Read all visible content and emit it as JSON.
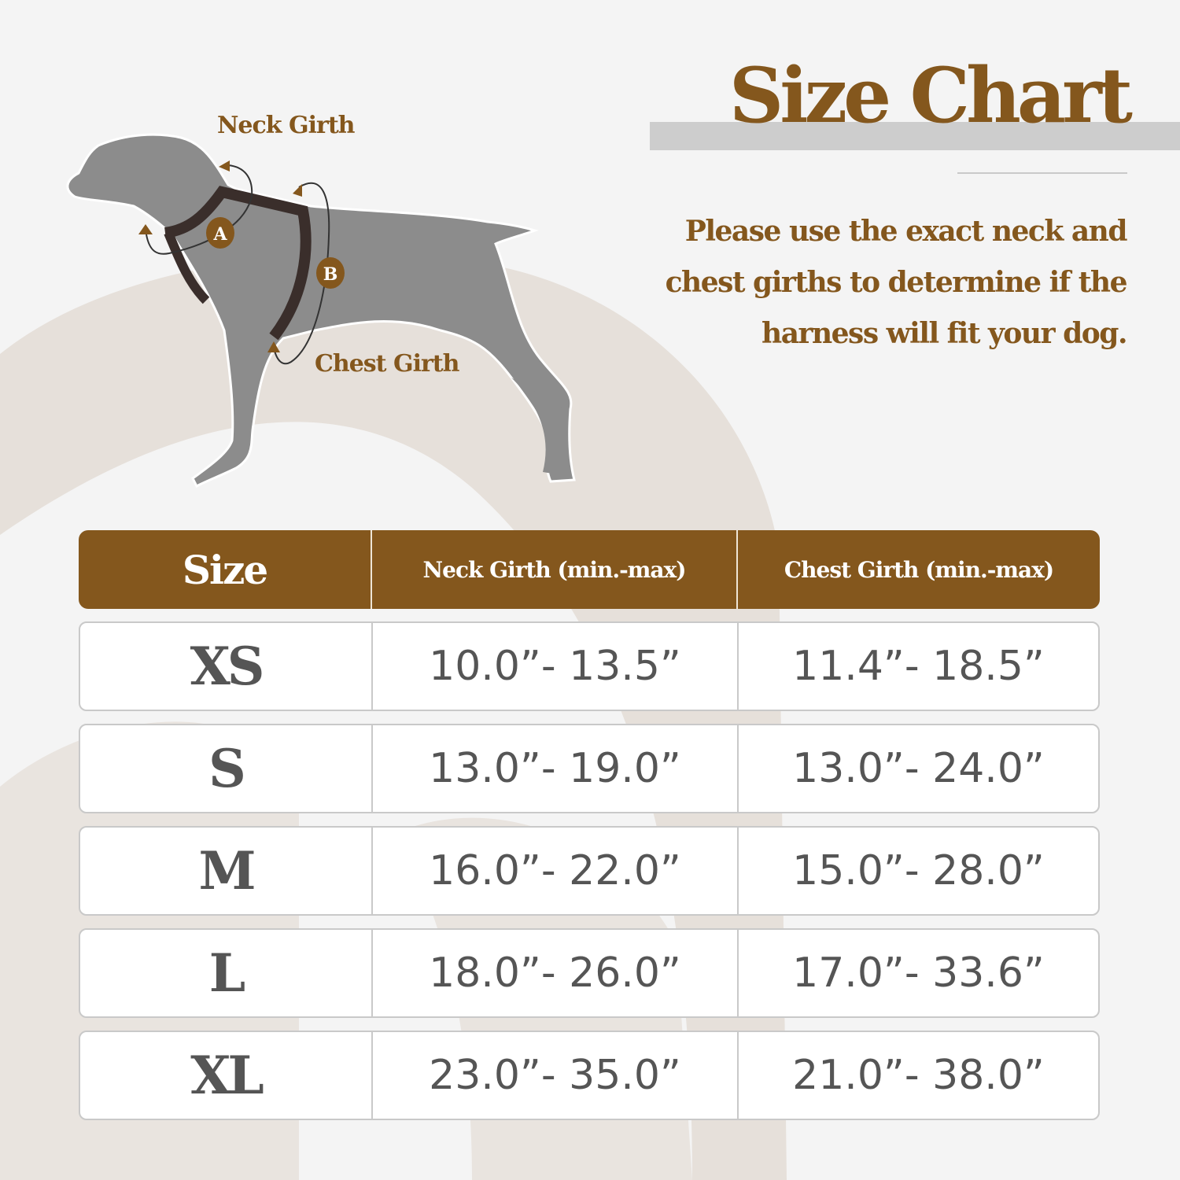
{
  "header": {
    "title": "Size Chart",
    "description_lines": [
      "Please use the exact neck and",
      "chest girths to determine if the",
      "harness will fit your dog."
    ]
  },
  "illustration": {
    "neck_label": "Neck Girth",
    "chest_label": "Chest Girth",
    "marker_a": "A",
    "marker_b": "B"
  },
  "table": {
    "columns": [
      "Size",
      "Neck Girth (min.-max)",
      "Chest Girth (min.-max)"
    ],
    "rows": [
      {
        "size": "XS",
        "neck": "10.0”- 13.5”",
        "chest": "11.4”- 18.5”"
      },
      {
        "size": "S",
        "neck": "13.0”- 19.0”",
        "chest": "13.0”- 24.0”"
      },
      {
        "size": "M",
        "neck": "16.0”- 22.0”",
        "chest": "15.0”- 28.0”"
      },
      {
        "size": "L",
        "neck": "18.0”- 26.0”",
        "chest": "17.0”- 33.6”"
      },
      {
        "size": "XL",
        "neck": "23.0”- 35.0”",
        "chest": "21.0”- 38.0”"
      }
    ]
  },
  "colors": {
    "brand_brown": "#84571d",
    "background": "#f4f4f4",
    "blob": "#e6e0da",
    "dog_gray": "#8c8c8c",
    "harness": "#3a2e2b",
    "text_gray": "#555555"
  }
}
